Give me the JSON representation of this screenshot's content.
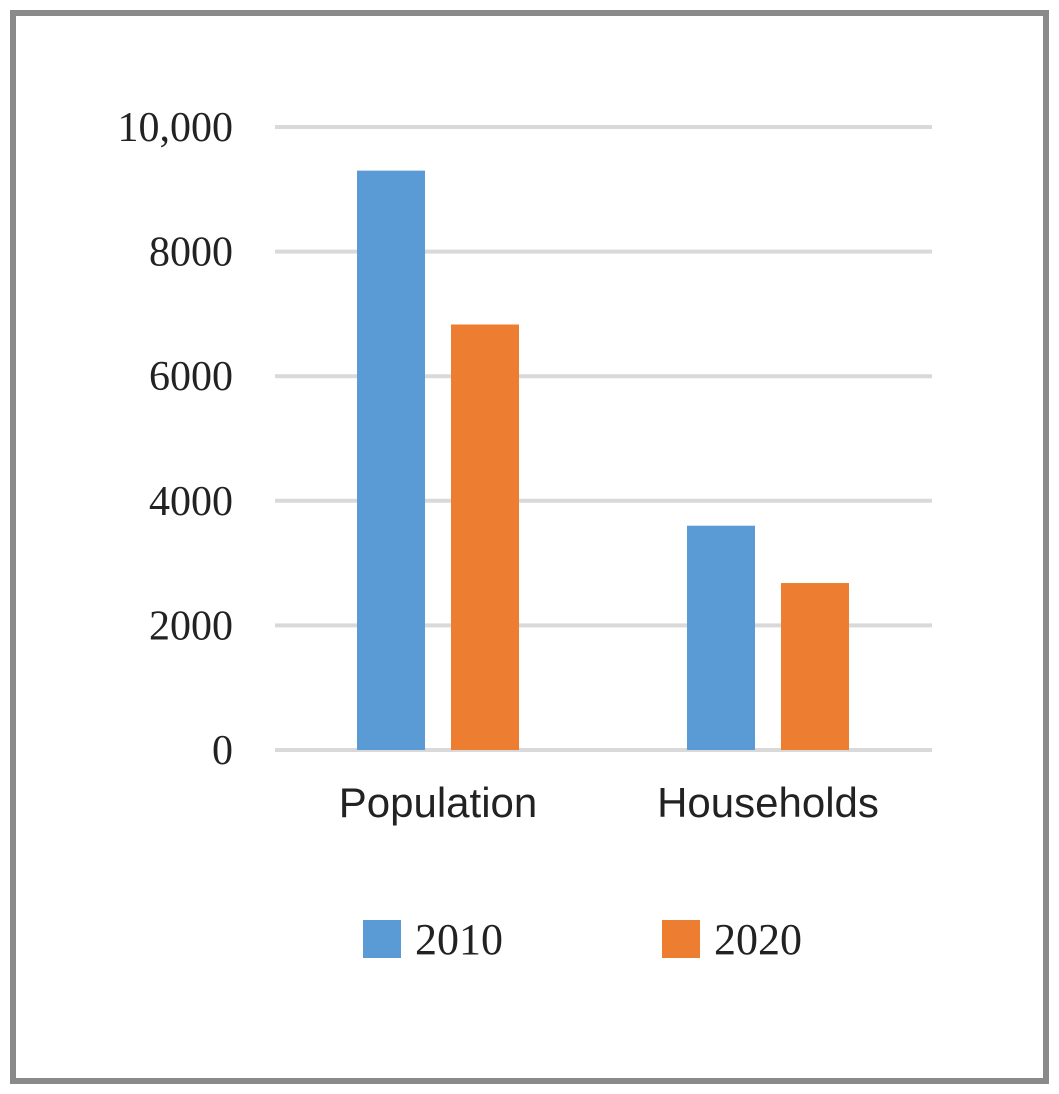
{
  "chart_data": {
    "type": "bar",
    "categories": [
      "Population",
      "Households"
    ],
    "series": [
      {
        "name": "2010",
        "values": [
          9300,
          3600
        ],
        "color": "#5b9bd5"
      },
      {
        "name": "2020",
        "values": [
          6830,
          2680
        ],
        "color": "#ed7d31"
      }
    ],
    "ylim": [
      0,
      10000
    ],
    "yticks": [
      0,
      2000,
      4000,
      6000,
      8000,
      10000
    ],
    "ytick_labels": [
      "0",
      "2000",
      "4000",
      "6000",
      "8000",
      "10,000"
    ],
    "grid": true,
    "legend_position": "bottom",
    "gridline_color": "#d9d9d9",
    "frame_color": "#8a8a8a"
  }
}
